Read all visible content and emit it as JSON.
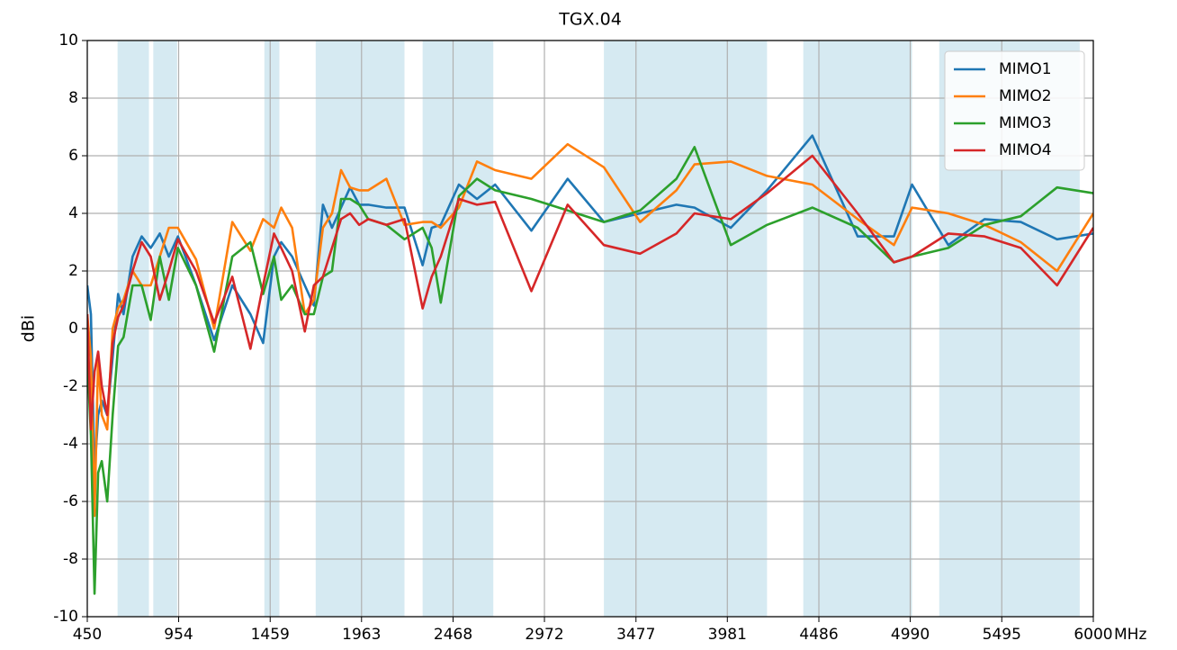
{
  "chart_data": {
    "type": "line",
    "title": "TGX.04",
    "ylabel": "dBi",
    "xlabel": "MHz",
    "x": [
      450,
      470,
      490,
      510,
      530,
      560,
      590,
      620,
      650,
      700,
      750,
      800,
      850,
      900,
      950,
      1050,
      1150,
      1250,
      1350,
      1420,
      1480,
      1520,
      1580,
      1650,
      1700,
      1750,
      1800,
      1850,
      1900,
      1950,
      2000,
      2100,
      2200,
      2300,
      2350,
      2400,
      2500,
      2600,
      2700,
      2900,
      3100,
      3300,
      3500,
      3700,
      3800,
      4000,
      4200,
      4450,
      4700,
      4900,
      5000,
      5200,
      5400,
      5600,
      5800,
      6000
    ],
    "series": [
      {
        "name": "MIMO1",
        "color": "#1f77b4",
        "values": [
          1.5,
          0.5,
          -5,
          -3,
          -2.5,
          -3,
          -1,
          1.2,
          0.5,
          2.5,
          3.2,
          2.8,
          3.3,
          2.5,
          3.2,
          1.5,
          -0.4,
          1.5,
          0.5,
          -0.5,
          2.5,
          3.0,
          2.5,
          1.5,
          0.8,
          4.3,
          3.5,
          4.2,
          4.9,
          4.3,
          4.3,
          4.2,
          4.2,
          2.2,
          3.5,
          3.6,
          5.0,
          4.5,
          5.0,
          3.4,
          5.2,
          3.7,
          4.0,
          4.3,
          4.2,
          3.5,
          4.8,
          6.7,
          3.2,
          3.2,
          5.0,
          2.9,
          3.8,
          3.7,
          3.1,
          3.3
        ]
      },
      {
        "name": "MIMO2",
        "color": "#ff7f0e",
        "values": [
          0.5,
          -1,
          -6.5,
          -1,
          -3,
          -3.5,
          0,
          0.7,
          1,
          2,
          1.5,
          1.5,
          2.5,
          3.5,
          3.5,
          2.4,
          0,
          3.7,
          2.7,
          3.8,
          3.5,
          4.2,
          3.5,
          0.5,
          1,
          3.5,
          4,
          5.5,
          4.9,
          4.8,
          4.8,
          5.2,
          3.6,
          3.7,
          3.7,
          3.5,
          4.2,
          5.8,
          5.5,
          5.2,
          6.4,
          5.6,
          3.7,
          4.8,
          5.7,
          5.8,
          5.3,
          5.0,
          3.8,
          2.9,
          4.2,
          4.0,
          3.6,
          3.0,
          2.0,
          4.0
        ]
      },
      {
        "name": "MIMO3",
        "color": "#2ca02c",
        "values": [
          -1,
          -3.7,
          -9.2,
          -5,
          -4.6,
          -6,
          -3,
          -0.6,
          -0.3,
          1.5,
          1.5,
          0.3,
          2.5,
          1.0,
          2.8,
          1.5,
          -0.8,
          2.5,
          3.0,
          1.2,
          2.5,
          1.0,
          1.5,
          0.5,
          0.5,
          1.8,
          2,
          4.5,
          4.5,
          4.3,
          3.8,
          3.6,
          3.1,
          3.5,
          2.8,
          0.9,
          4.6,
          5.2,
          4.8,
          4.5,
          4.1,
          3.7,
          4.1,
          5.2,
          6.3,
          2.9,
          3.6,
          4.2,
          3.5,
          2.3,
          2.5,
          2.8,
          3.6,
          3.9,
          4.9,
          4.7
        ]
      },
      {
        "name": "MIMO4",
        "color": "#d62728",
        "values": [
          0.5,
          -3.5,
          -1.5,
          -0.8,
          -2,
          -3,
          -0.5,
          0.4,
          0.8,
          2,
          3.0,
          2.5,
          1.0,
          2.0,
          3.1,
          2,
          0.2,
          1.8,
          -0.7,
          1.5,
          3.3,
          2.8,
          2.0,
          -0.1,
          1.5,
          1.8,
          2.8,
          3.8,
          4.0,
          3.6,
          3.8,
          3.6,
          3.8,
          0.7,
          1.8,
          2.5,
          4.5,
          4.3,
          4.4,
          1.3,
          4.3,
          2.9,
          2.6,
          3.3,
          4.0,
          3.8,
          4.7,
          6.0,
          4.0,
          2.3,
          2.5,
          3.3,
          3.2,
          2.8,
          1.5,
          3.5
        ]
      }
    ],
    "bands": [
      [
        617,
        790
      ],
      [
        814,
        946
      ],
      [
        1427,
        1510
      ],
      [
        1710,
        2200
      ],
      [
        2300,
        2690
      ],
      [
        3300,
        4200
      ],
      [
        4400,
        5000
      ],
      [
        5150,
        5925
      ]
    ],
    "band_color": "#d6eaf2",
    "xlim": [
      450,
      6000
    ],
    "xticks": [
      450,
      954,
      1459,
      1963,
      2468,
      2972,
      3477,
      3981,
      4486,
      4990,
      5495,
      6000
    ],
    "ylim": [
      -10,
      10
    ],
    "yticks": [
      -10,
      -8,
      -6,
      -4,
      -2,
      0,
      2,
      4,
      6,
      8,
      10
    ],
    "grid": true,
    "legend": "upper right"
  }
}
